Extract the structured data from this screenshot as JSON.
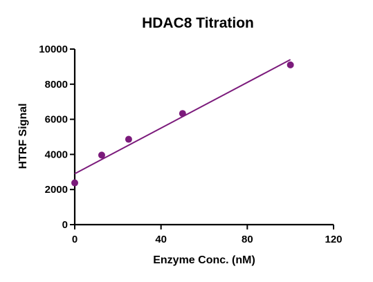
{
  "chart_data": {
    "type": "scatter",
    "title": "HDAC8 Titration",
    "xlabel": "Enzyme Conc. (nM)",
    "ylabel": "HTRF Signal",
    "xlim": [
      0,
      120
    ],
    "ylim": [
      0,
      10000
    ],
    "x_ticks": [
      "0",
      "40",
      "80",
      "120"
    ],
    "y_ticks": [
      "0",
      "2000",
      "4000",
      "6000",
      "8000",
      "10000"
    ],
    "grid": false,
    "legend": "none",
    "colors": {
      "series": "#7b1a7b",
      "axis": "#000000"
    },
    "series": [
      {
        "points": [
          {
            "x": 0,
            "y": 2380
          },
          {
            "x": 12.5,
            "y": 3960
          },
          {
            "x": 25,
            "y": 4860
          },
          {
            "x": 50,
            "y": 6330
          },
          {
            "x": 100,
            "y": 9100
          }
        ],
        "fit": {
          "type": "linear",
          "x0": 0,
          "y0": 2900,
          "x1": 100,
          "y1": 9400
        }
      }
    ]
  }
}
